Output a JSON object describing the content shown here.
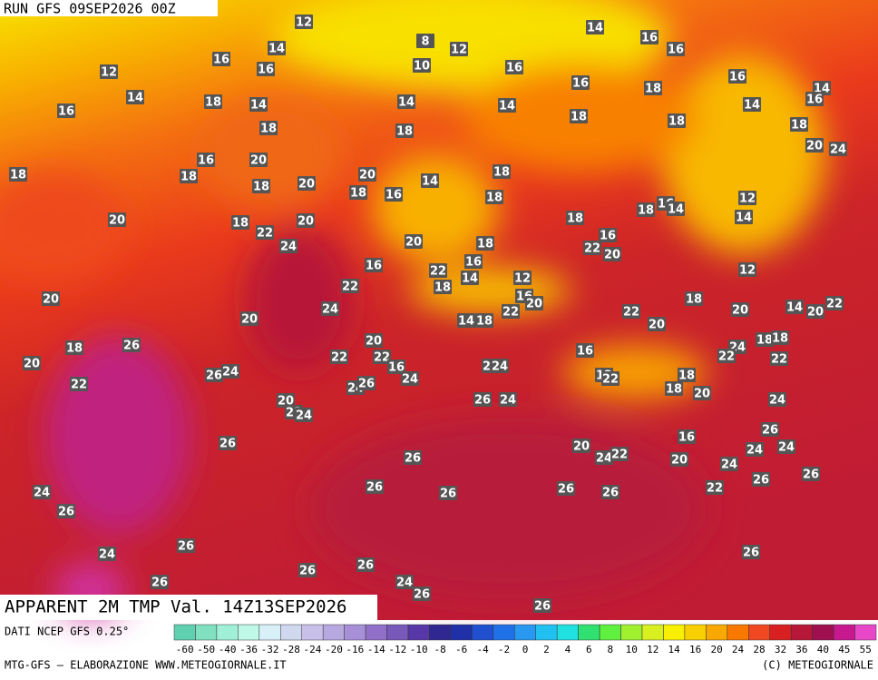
{
  "header": {
    "title": "RUN GFS 09SEP2026 00Z"
  },
  "map": {
    "labels": [
      12,
      8,
      12,
      14,
      14,
      16,
      16,
      12,
      16,
      16,
      10,
      16,
      14,
      18,
      14,
      16,
      14,
      14,
      16,
      18,
      16,
      14,
      16,
      18,
      18,
      14,
      18,
      18,
      18,
      20,
      24,
      18,
      18,
      16,
      20,
      18,
      20,
      20,
      18,
      16,
      14,
      18,
      18,
      18,
      18,
      16,
      14,
      12,
      14,
      20,
      18,
      22,
      20,
      24,
      20,
      18,
      22,
      16,
      20,
      16,
      16,
      22,
      14,
      18,
      12,
      16,
      20,
      12,
      20,
      22,
      24,
      22,
      14,
      18,
      22,
      18,
      20,
      14,
      20,
      22,
      20,
      20,
      26,
      18,
      20,
      20,
      22,
      22,
      16,
      16,
      24,
      22,
      18,
      18,
      22,
      26,
      24,
      22,
      24,
      24,
      12,
      22,
      18,
      22,
      24,
      26,
      18,
      20,
      20,
      22,
      24,
      26,
      24,
      24,
      26,
      26,
      20,
      24,
      22,
      16,
      24,
      24,
      20,
      24,
      26,
      26,
      26,
      26,
      26,
      26,
      26,
      22,
      24,
      26,
      26,
      24,
      26,
      26,
      26,
      26,
      24,
      26,
      26
    ]
  },
  "product": "APPARENT 2M TMP Val. 14Z13SEP2026",
  "legend": {
    "source": "DATI NCEP GFS 0.25°",
    "colors": [
      "#5fd0b0",
      "#80e0c0",
      "#a0f0d8",
      "#c0f8e8",
      "#d8f0f8",
      "#d0d8f0",
      "#c8c0e8",
      "#b8a8e0",
      "#a890d8",
      "#9070c8",
      "#7858b8",
      "#5838a8",
      "#302890",
      "#2030a8",
      "#2050d0",
      "#2070e8",
      "#2898f0",
      "#20c0f0",
      "#20e0e0",
      "#30e070",
      "#60f040",
      "#a0f030",
      "#d8f020",
      "#f8f000",
      "#f8d000",
      "#f8a800",
      "#f87800",
      "#f04820",
      "#d82020",
      "#b81838",
      "#a01050",
      "#c81890",
      "#e848c8"
    ],
    "ticks": [
      -60,
      -50,
      -40,
      -36,
      -32,
      -28,
      -24,
      -20,
      -16,
      -14,
      -12,
      -10,
      -8,
      -6,
      -4,
      -2,
      0,
      2,
      4,
      6,
      8,
      10,
      12,
      14,
      16,
      20,
      24,
      28,
      32,
      36,
      40,
      45,
      55
    ]
  },
  "footer": {
    "left": "MTG-GFS — ELABORAZIONE WWW.METEOGIORNALE.IT",
    "right": "(C) METEOGIORNALE"
  }
}
